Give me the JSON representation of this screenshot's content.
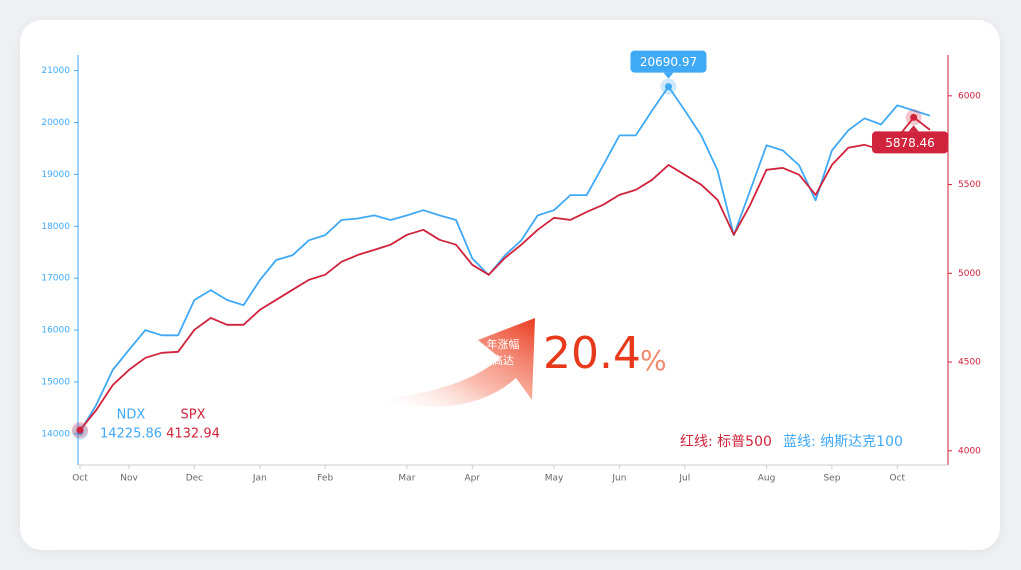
{
  "chart_data": {
    "type": "line",
    "categories": [
      "Oct",
      null,
      null,
      "Nov",
      null,
      null,
      null,
      "Dec",
      null,
      null,
      null,
      "Jan",
      null,
      null,
      null,
      "Feb",
      null,
      null,
      null,
      null,
      "Mar",
      null,
      null,
      null,
      "Apr",
      null,
      null,
      null,
      null,
      "May",
      null,
      null,
      null,
      "Jun",
      null,
      null,
      null,
      "Jul",
      null,
      null,
      null,
      null,
      "Aug",
      null,
      null,
      null,
      "Sep",
      null,
      null,
      null,
      "Oct",
      null,
      null
    ],
    "series": [
      {
        "name": "NDX",
        "color": "#3fa9f5",
        "axis": "y",
        "start_value": 14225.86,
        "values": [
          14040,
          14560,
          15230,
          15620,
          16000,
          15900,
          15900,
          16580,
          16770,
          16580,
          16480,
          16960,
          17350,
          17440,
          17730,
          17830,
          18120,
          18150,
          18210,
          18120,
          18210,
          18310,
          18210,
          18120,
          17380,
          17060,
          17440,
          17730,
          18210,
          18310,
          18600,
          18600,
          19170,
          19750,
          19750,
          20230,
          20690.97,
          20230,
          19750,
          19080,
          17830,
          18690,
          19560,
          19460,
          19170,
          18500,
          19460,
          19850,
          20080,
          19960,
          20330,
          20230,
          20130
        ]
      },
      {
        "name": "SPX",
        "color": "#d0233c",
        "axis": "y2",
        "start_value": 4132.94,
        "values": [
          4117,
          4230,
          4370,
          4456,
          4524,
          4552,
          4558,
          4682,
          4749,
          4710,
          4710,
          4794,
          4851,
          4907,
          4963,
          4992,
          5065,
          5104,
          5132,
          5161,
          5217,
          5245,
          5189,
          5161,
          5048,
          4992,
          5087,
          5161,
          5245,
          5313,
          5301,
          5346,
          5386,
          5442,
          5470,
          5527,
          5611,
          5555,
          5499,
          5414,
          5217,
          5386,
          5583,
          5594,
          5555,
          5442,
          5611,
          5707,
          5724,
          5696,
          5763,
          5878.46,
          5808
        ]
      }
    ],
    "ylim": [
      13400,
      21300
    ],
    "yticks": [
      14000,
      15000,
      16000,
      17000,
      18000,
      19000,
      20000,
      21000
    ],
    "y2lim": [
      3920,
      6230
    ],
    "y2ticks": [
      4000,
      4500,
      5000,
      5500,
      6000
    ],
    "callouts": [
      {
        "series": 0,
        "index": 36
      },
      {
        "series": 1,
        "index": 51
      }
    ],
    "annotation_lines": [
      "年涨幅",
      "高达"
    ],
    "gain": 20.4,
    "gain_unit": "%",
    "legend": [
      "红线: 标普500",
      "蓝线: 纳斯达克100"
    ]
  }
}
